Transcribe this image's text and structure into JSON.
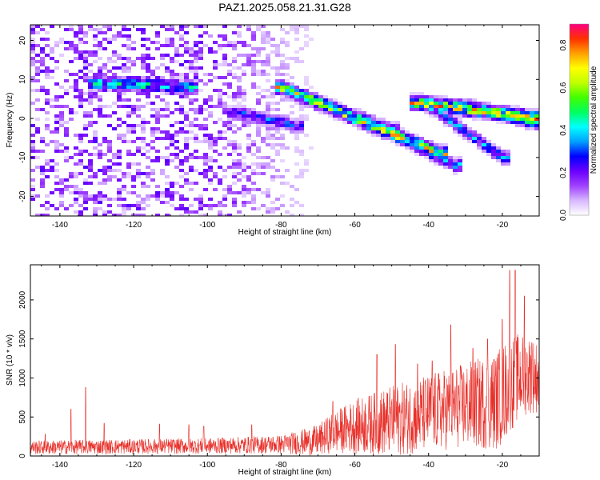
{
  "title": "PAZ1.2025.058.21.31.G28",
  "chart_data": [
    {
      "type": "heatmap",
      "xlabel": "Height of straight line (km)",
      "ylabel": "Frequency (Hz)",
      "xlim": [
        -148,
        -10
      ],
      "ylim": [
        -25,
        24
      ],
      "xticks": [
        -140,
        -120,
        -100,
        -80,
        -60,
        -40,
        -20
      ],
      "yticks": [
        -20,
        -10,
        0,
        10,
        20
      ],
      "colorbar": {
        "label": "Normalized spectral amplitude",
        "range": [
          0.0,
          0.9
        ],
        "ticks": [
          0.0,
          0.2,
          0.4,
          0.6,
          0.8
        ],
        "colors": [
          "#ffffff",
          "#d8b8ff",
          "#a040ff",
          "#6a00ff",
          "#0000ff",
          "#00a0ff",
          "#00ffff",
          "#00ff60",
          "#40ff00",
          "#c0ff00",
          "#ffff00",
          "#ffa000",
          "#ff3000",
          "#ff0080"
        ]
      },
      "features": [
        {
          "x_start": -131,
          "x_end": -104,
          "freq_start": 9,
          "freq_end": 8,
          "peak": 0.45
        },
        {
          "x_start": -92,
          "x_end": -76,
          "freq_start": 1.5,
          "freq_end": -2,
          "peak": 0.3
        },
        {
          "x_start": -80,
          "x_end": -37,
          "freq_start": 8,
          "freq_end": -9,
          "peak": 0.65
        },
        {
          "x_start": -75,
          "x_end": -50,
          "freq_start": 6,
          "freq_end": -3,
          "peak": 0.35
        },
        {
          "x_start": -58,
          "x_end": -33,
          "freq_start": 0,
          "freq_end": -12,
          "peak": 0.35
        },
        {
          "x_start": -43,
          "x_end": -10,
          "freq_start": 4,
          "freq_end": 0,
          "peak": 0.7
        },
        {
          "x_start": -41,
          "x_end": -20,
          "freq_start": 4,
          "freq_end": -10,
          "peak": 0.35
        },
        {
          "x_start": -30,
          "x_end": -11,
          "freq_start": 3,
          "freq_end": -1,
          "peak": 0.5
        }
      ]
    },
    {
      "type": "line",
      "xlabel": "Height of straight line (km)",
      "ylabel": "SNR (10 * v/v)",
      "xlim": [
        -148,
        -10
      ],
      "ylim": [
        0,
        2450
      ],
      "xticks": [
        -140,
        -120,
        -100,
        -80,
        -60,
        -40,
        -20
      ],
      "yticks": [
        0,
        500,
        1000,
        1500,
        2000
      ],
      "series": [
        {
          "color": "#e8302a",
          "baseline": [
            [
              -148,
              110
            ],
            [
              -100,
              130
            ],
            [
              -80,
              150
            ],
            [
              -70,
              200
            ],
            [
              -66,
              300
            ],
            [
              -60,
              380
            ],
            [
              -50,
              450
            ],
            [
              -40,
              550
            ],
            [
              -30,
              650
            ],
            [
              -22,
              700
            ],
            [
              -18,
              900
            ],
            [
              -16,
              1000
            ],
            [
              -13,
              1050
            ],
            [
              -10,
              1000
            ]
          ],
          "spread": [
            [
              -148,
              90
            ],
            [
              -100,
              100
            ],
            [
              -80,
              120
            ],
            [
              -70,
              200
            ],
            [
              -60,
              350
            ],
            [
              -50,
              450
            ],
            [
              -40,
              500
            ],
            [
              -30,
              550
            ],
            [
              -20,
              650
            ],
            [
              -10,
              450
            ]
          ],
          "spikes": [
            [
              -133,
              880
            ],
            [
              -144,
              280
            ],
            [
              -137,
              600
            ],
            [
              -128,
              420
            ],
            [
              -113,
              410
            ],
            [
              -105,
              400
            ],
            [
              -101,
              380
            ],
            [
              -88,
              400
            ],
            [
              -66,
              700
            ],
            [
              -54,
              1300
            ],
            [
              -49,
              1430
            ],
            [
              -43,
              1180
            ],
            [
              -39,
              1220
            ],
            [
              -34,
              1680
            ],
            [
              -28,
              1380
            ],
            [
              -24,
              1500
            ],
            [
              -20,
              1750
            ],
            [
              -18,
              2380
            ],
            [
              -16.5,
              2380
            ],
            [
              -14,
              2050
            ],
            [
              -12,
              1450
            ]
          ]
        }
      ]
    }
  ]
}
